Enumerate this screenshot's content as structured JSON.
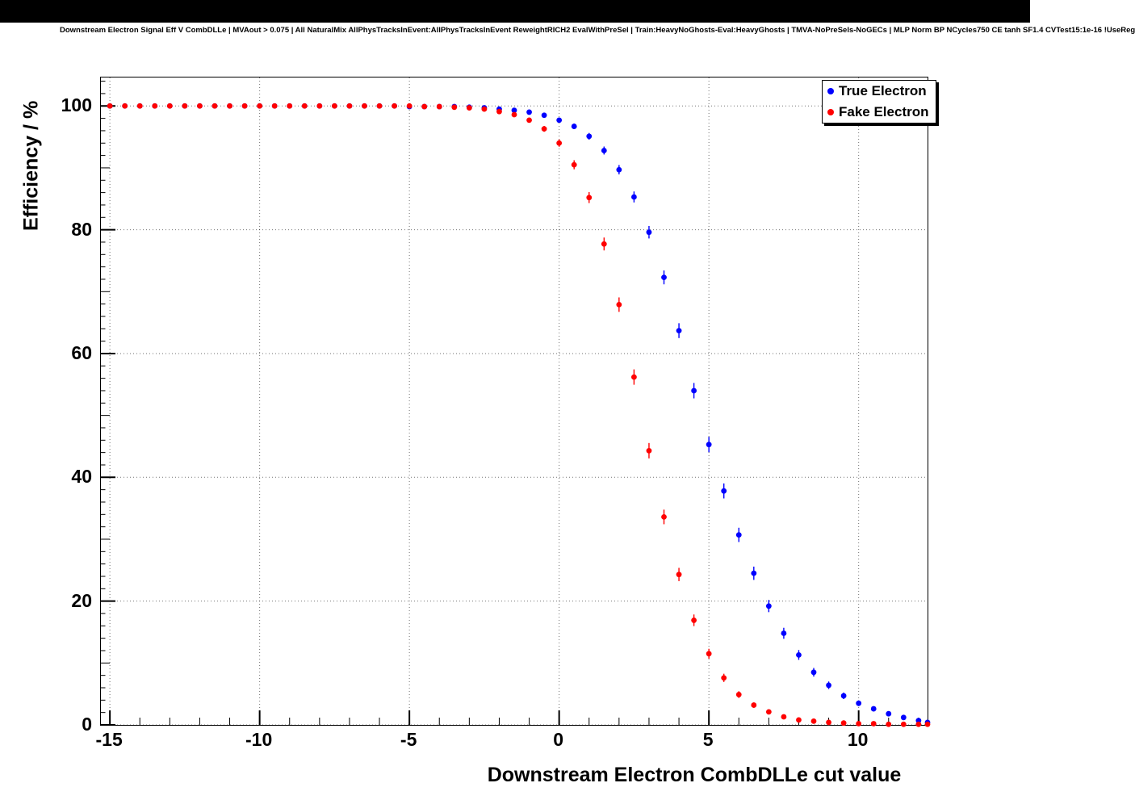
{
  "title": "Downstream Electron Signal Eff V CombDLLe | MVAout > 0.075 | All NaturalMix AllPhysTracksInEvent:AllPhysTracksInEvent ReweightRICH2 EvalWithPreSel | Train:HeavyNoGhosts-Eval:HeavyGhosts | TMVA-NoPreSels-NoGECs | MLP Norm BP NCycles750 CE tanh SF1.4 CVTest15:1e-16 !UseReg",
  "chart_data": {
    "type": "scatter",
    "title": "Downstream Electron Signal Eff V CombDLLe",
    "xlabel": "Downstream Electron CombDLLe cut value",
    "ylabel": "Efficiency / %",
    "xlim": [
      -15.3,
      12.3
    ],
    "ylim": [
      0,
      104.6
    ],
    "x_ticks_labeled": [
      -15,
      -10,
      -5,
      0,
      5,
      10
    ],
    "y_ticks_labeled": [
      0,
      20,
      40,
      60,
      80,
      100
    ],
    "minor_x_step": 1,
    "minor_y_step": 2,
    "grid": true,
    "grid_style": "dotted",
    "marker": "filled-circle",
    "legend": {
      "position": "top-right",
      "entries": [
        {
          "label": "True Electron",
          "color": "#0000ff"
        },
        {
          "label": "Fake Electron",
          "color": "#ff0000"
        }
      ]
    },
    "x": [
      -15,
      -14.5,
      -14,
      -13.5,
      -13,
      -12.5,
      -12,
      -11.5,
      -11,
      -10.5,
      -10,
      -9.5,
      -9,
      -8.5,
      -8,
      -7.5,
      -7,
      -6.5,
      -6,
      -5.5,
      -5,
      -4.5,
      -4,
      -3.5,
      -3,
      -2.5,
      -2,
      -1.5,
      -1,
      -0.5,
      0,
      0.5,
      1,
      1.5,
      2,
      2.5,
      3,
      3.5,
      4,
      4.5,
      5,
      5.5,
      6,
      6.5,
      7,
      7.5,
      8,
      8.5,
      9,
      9.5,
      10,
      10.5,
      11,
      11.5,
      12,
      12.3
    ],
    "series": [
      {
        "name": "True Electron",
        "color": "#0000ff",
        "values": [
          100,
          100,
          100,
          100,
          100,
          100,
          100,
          100,
          100,
          100,
          100,
          100,
          100,
          100,
          100,
          100,
          100,
          100,
          100,
          100,
          99.9,
          99.9,
          99.9,
          99.9,
          99.8,
          99.7,
          99.5,
          99.3,
          99.0,
          98.5,
          97.7,
          96.7,
          95.1,
          92.8,
          89.7,
          85.3,
          79.6,
          72.3,
          63.7,
          54.0,
          45.3,
          37.8,
          30.7,
          24.5,
          19.2,
          14.8,
          11.3,
          8.5,
          6.4,
          4.7,
          3.5,
          2.6,
          1.8,
          1.2,
          0.7,
          0.4
        ]
      },
      {
        "name": "Fake Electron",
        "color": "#ff0000",
        "values": [
          100,
          100,
          100,
          100,
          100,
          100,
          100,
          100,
          100,
          100,
          100,
          100,
          100,
          100,
          100,
          100,
          100,
          100,
          100,
          100,
          100,
          99.9,
          99.9,
          99.8,
          99.7,
          99.5,
          99.1,
          98.6,
          97.7,
          96.3,
          94.0,
          90.5,
          85.2,
          77.7,
          67.9,
          56.2,
          44.3,
          33.6,
          24.3,
          16.9,
          11.5,
          7.6,
          4.9,
          3.2,
          2.1,
          1.3,
          0.8,
          0.6,
          0.4,
          0.3,
          0.2,
          0.2,
          0.1,
          0.1,
          0.1,
          0.1
        ]
      }
    ]
  }
}
